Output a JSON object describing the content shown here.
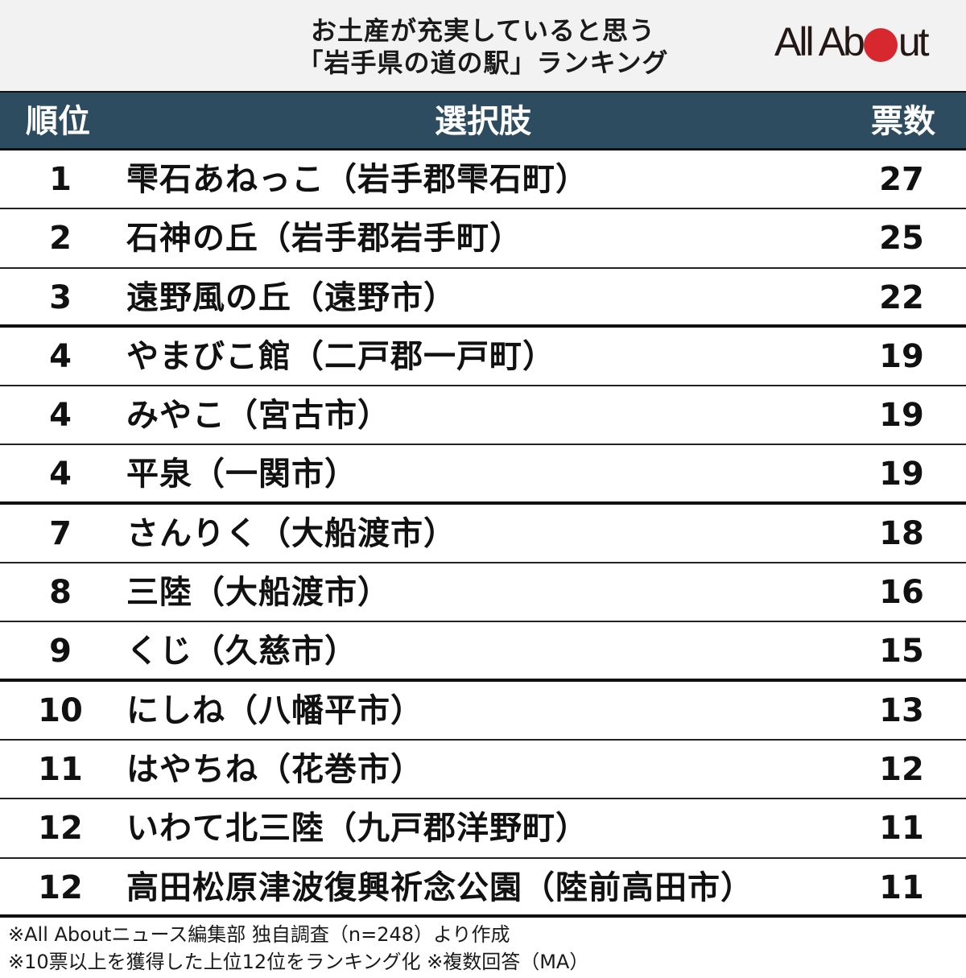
{
  "title": {
    "line1": "お土産が充実していると思う",
    "line2": "「岩手県の道の駅」ランキング"
  },
  "logo": {
    "text_before": "All Ab",
    "text_after": "ut",
    "dot_color": "#d7282f"
  },
  "colors": {
    "header_bg": "#2e4c60",
    "title_bg": "#f2f2f2"
  },
  "table": {
    "headers": {
      "rank": "順位",
      "choice": "選択肢",
      "votes": "票数"
    },
    "rows": [
      {
        "rank": "1",
        "name": "雫石あねっこ（岩手郡雫石町）",
        "votes": "27"
      },
      {
        "rank": "2",
        "name": "石神の丘（岩手郡岩手町）",
        "votes": "25"
      },
      {
        "rank": "3",
        "name": "遠野風の丘（遠野市）",
        "votes": "22"
      },
      {
        "rank": "4",
        "name": "やまびこ館（二戸郡一戸町）",
        "votes": "19"
      },
      {
        "rank": "4",
        "name": "みやこ（宮古市）",
        "votes": "19"
      },
      {
        "rank": "4",
        "name": "平泉（一関市）",
        "votes": "19"
      },
      {
        "rank": "7",
        "name": "さんりく（大船渡市）",
        "votes": "18"
      },
      {
        "rank": "8",
        "name": "三陸（大船渡市）",
        "votes": "16"
      },
      {
        "rank": "9",
        "name": "くじ（久慈市）",
        "votes": "15"
      },
      {
        "rank": "10",
        "name": "にしね（八幡平市）",
        "votes": "13"
      },
      {
        "rank": "11",
        "name": "はやちね（花巻市）",
        "votes": "12"
      },
      {
        "rank": "12",
        "name": "いわて北三陸（九戸郡洋野町）",
        "votes": "11"
      },
      {
        "rank": "12",
        "name": "高田松原津波復興祈念公園（陸前高田市）",
        "votes": "11"
      }
    ]
  },
  "footer": {
    "note1": "※All Aboutニュース編集部 独自調査（n=248）より作成",
    "note2": "※10票以上を獲得した上位12位をランキング化 ※複数回答（MA）"
  },
  "chart_data": {
    "type": "table",
    "title": "お土産が充実していると思う「岩手県の道の駅」ランキング",
    "columns": [
      "順位",
      "選択肢",
      "票数"
    ],
    "categories": [
      "雫石あねっこ（岩手郡雫石町）",
      "石神の丘（岩手郡岩手町）",
      "遠野風の丘（遠野市）",
      "やまびこ館（二戸郡一戸町）",
      "みやこ（宮古市）",
      "平泉（一関市）",
      "さんりく（大船渡市）",
      "三陸（大船渡市）",
      "くじ（久慈市）",
      "にしね（八幡平市）",
      "はやちね（花巻市）",
      "いわて北三陸（九戸郡洋野町）",
      "高田松原津波復興祈念公園（陸前高田市）"
    ],
    "ranks": [
      1,
      2,
      3,
      4,
      4,
      4,
      7,
      8,
      9,
      10,
      11,
      12,
      12
    ],
    "values": [
      27,
      25,
      22,
      19,
      19,
      19,
      18,
      16,
      15,
      13,
      12,
      11,
      11
    ],
    "notes": [
      "※All Aboutニュース編集部 独自調査（n=248）より作成",
      "※10票以上を獲得した上位12位をランキング化 ※複数回答（MA）"
    ]
  }
}
